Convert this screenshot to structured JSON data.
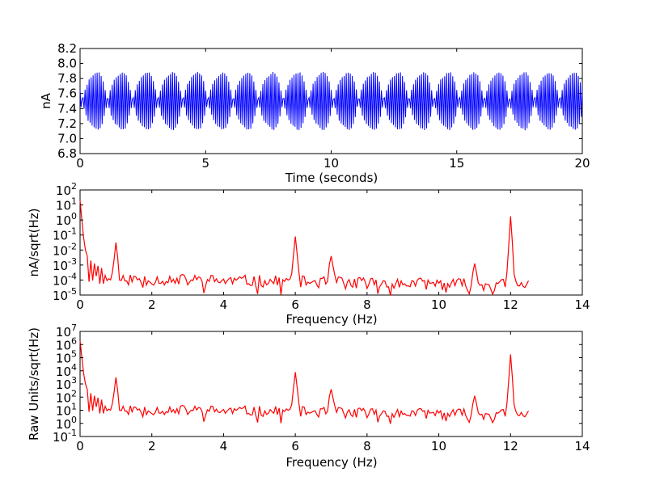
{
  "chart_data": [
    {
      "type": "line",
      "title": "",
      "xlabel": "Time (seconds)",
      "ylabel": "nA",
      "xlim": [
        0,
        20
      ],
      "ylim": [
        6.8,
        8.2
      ],
      "xticks": [
        "0",
        "5",
        "10",
        "15",
        "20"
      ],
      "yticks": [
        "6.8",
        "7.0",
        "7.2",
        "7.4",
        "7.6",
        "7.8",
        "8.0",
        "8.2"
      ],
      "grid": false,
      "color": "#0000ff",
      "signal": {
        "offset": 7.5,
        "amplitude": 0.5,
        "carrier_hz": 12.0,
        "modulation_hz": 1.0,
        "modulation_depth": 0.3,
        "sample_rate_hz": 25
      }
    },
    {
      "type": "line",
      "title": "",
      "xlabel": "Frequency (Hz)",
      "ylabel": "nA/sqrt(Hz)",
      "xscale": "linear",
      "yscale": "log",
      "xlim": [
        0,
        14
      ],
      "ylim_exp": [
        -5,
        2
      ],
      "xticks": [
        "0",
        "2",
        "4",
        "6",
        "8",
        "10",
        "12",
        "14"
      ],
      "yticks": [
        {
          "base": "10",
          "exp": "-5"
        },
        {
          "base": "10",
          "exp": "-4"
        },
        {
          "base": "10",
          "exp": "-3"
        },
        {
          "base": "10",
          "exp": "-2"
        },
        {
          "base": "10",
          "exp": "-1"
        },
        {
          "base": "10",
          "exp": "0"
        },
        {
          "base": "10",
          "exp": "1"
        },
        {
          "base": "10",
          "exp": "2"
        }
      ],
      "grid": false,
      "color": "#ff0000",
      "spectrum": {
        "f_max": 12.5,
        "df": 0.05,
        "low_freq": [
          [
            0.0,
            1.3
          ],
          [
            0.05,
            0.0
          ],
          [
            0.1,
            -1.2
          ],
          [
            0.15,
            -2.0
          ],
          [
            0.2,
            -2.4
          ],
          [
            0.3,
            -2.7
          ],
          [
            0.4,
            -2.9
          ],
          [
            0.5,
            -3.05
          ],
          [
            0.6,
            -3.2
          ]
        ],
        "peaks": [
          {
            "f": 1.0,
            "peak": -1.5
          },
          {
            "f": 6.0,
            "peak": -1.1
          },
          {
            "f": 7.0,
            "peak": -2.4
          },
          {
            "f": 11.0,
            "peak": -2.9
          },
          {
            "f": 12.0,
            "peak": 0.25
          }
        ],
        "floor": -3.9,
        "floor_end": -4.35
      }
    },
    {
      "type": "line",
      "title": "",
      "xlabel": "Frequency (Hz)",
      "ylabel": "Raw Units/sqrt(Hz)",
      "xscale": "linear",
      "yscale": "log",
      "xlim": [
        0,
        14
      ],
      "ylim_exp": [
        -1,
        7
      ],
      "xticks": [
        "0",
        "2",
        "4",
        "6",
        "8",
        "10",
        "12",
        "14"
      ],
      "yticks": [
        {
          "base": "10",
          "exp": "-1"
        },
        {
          "base": "10",
          "exp": "0"
        },
        {
          "base": "10",
          "exp": "1"
        },
        {
          "base": "10",
          "exp": "2"
        },
        {
          "base": "10",
          "exp": "3"
        },
        {
          "base": "10",
          "exp": "4"
        },
        {
          "base": "10",
          "exp": "5"
        },
        {
          "base": "10",
          "exp": "6"
        },
        {
          "base": "10",
          "exp": "7"
        }
      ],
      "grid": false,
      "color": "#ff0000",
      "spectrum": {
        "f_max": 12.5,
        "df": 0.05,
        "low_freq": [
          [
            0.0,
            6.3
          ],
          [
            0.05,
            5.0
          ],
          [
            0.1,
            3.8
          ],
          [
            0.15,
            3.0
          ],
          [
            0.2,
            2.6
          ],
          [
            0.3,
            2.3
          ],
          [
            0.4,
            2.1
          ],
          [
            0.5,
            1.95
          ],
          [
            0.6,
            1.8
          ]
        ],
        "peaks": [
          {
            "f": 1.0,
            "peak": 3.5
          },
          {
            "f": 6.0,
            "peak": 3.9
          },
          {
            "f": 7.0,
            "peak": 2.6
          },
          {
            "f": 11.0,
            "peak": 2.1
          },
          {
            "f": 12.0,
            "peak": 5.25
          }
        ],
        "floor": 1.1,
        "floor_end": 0.65
      }
    }
  ]
}
